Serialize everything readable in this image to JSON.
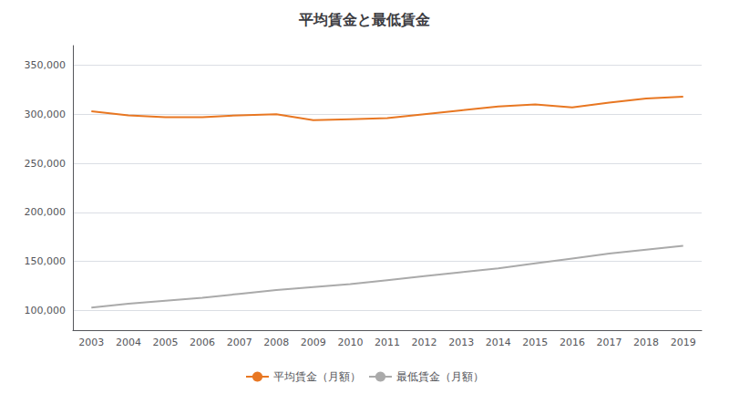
{
  "chart_data": {
    "type": "line",
    "title": "平均賃金と最低賃金",
    "categories": [
      "2003",
      "2004",
      "2005",
      "2006",
      "2007",
      "2008",
      "2009",
      "2010",
      "2011",
      "2012",
      "2013",
      "2014",
      "2015",
      "2016",
      "2017",
      "2018",
      "2019"
    ],
    "series": [
      {
        "name": "平均賃金（月額）",
        "color": "#E87722",
        "values": [
          303000,
          299000,
          297000,
          297000,
          299000,
          300000,
          294000,
          295000,
          296000,
          300000,
          304000,
          308000,
          310000,
          307000,
          312000,
          316000,
          318000
        ]
      },
      {
        "name": "最低賃金（月額）",
        "color": "#AAAAAA",
        "values": [
          103000,
          107000,
          110000,
          113000,
          117000,
          121000,
          124000,
          127000,
          131000,
          135000,
          139000,
          143000,
          148000,
          153000,
          158000,
          162000,
          166000
        ]
      }
    ],
    "ylim": [
      80000,
      370000
    ],
    "yticks": [
      {
        "value": 100000,
        "label": "100,000"
      },
      {
        "value": 150000,
        "label": "150,000"
      },
      {
        "value": 200000,
        "label": "200,000"
      },
      {
        "value": 250000,
        "label": "250,000"
      },
      {
        "value": 300000,
        "label": "300,000"
      },
      {
        "value": 350000,
        "label": "350,000"
      }
    ],
    "grid": true,
    "legend": "bottom"
  }
}
